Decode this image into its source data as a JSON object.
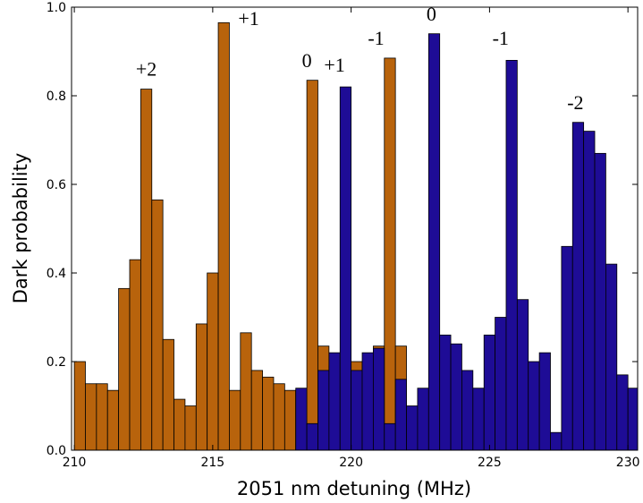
{
  "chart_data": {
    "type": "histogram",
    "xlabel": "2051 nm detuning (MHz)",
    "ylabel": "Dark probability",
    "xlim": [
      209.9,
      230.35
    ],
    "ylim": [
      0,
      1
    ],
    "xticks": [
      210,
      215,
      220,
      225,
      230
    ],
    "yticks": [
      {
        "value": 0,
        "label": "0.0"
      },
      {
        "value": 0.2,
        "label": "0.2"
      },
      {
        "value": 0.4,
        "label": "0.4"
      },
      {
        "value": 0.6,
        "label": "0.6"
      },
      {
        "value": 0.8,
        "label": "0.8"
      },
      {
        "value": 1,
        "label": "1.0"
      }
    ],
    "series": [
      {
        "color": "#b8630c",
        "bins": [
          210,
          210.4,
          210.8,
          211.2,
          211.6,
          212,
          212.4,
          212.8,
          213.2,
          213.6,
          214,
          214.4,
          214.8,
          215.2,
          215.6,
          216,
          216.4,
          216.8,
          217.2,
          217.6,
          218,
          218.4,
          218.8,
          219.2,
          219.6,
          220,
          220.4,
          220.8,
          221.2,
          221.6,
          222
        ],
        "values": [
          0.2,
          0.15,
          0.15,
          0.135,
          0.365,
          0.43,
          0.815,
          0.565,
          0.25,
          0.115,
          0.1,
          0.285,
          0.4,
          0.965,
          0.135,
          0.265,
          0.18,
          0.165,
          0.15,
          0.135,
          0.135,
          0.835,
          0.235,
          0.19,
          0.2,
          0.2,
          0.2,
          0.235,
          0.885,
          0.235
        ]
      },
      {
        "color": "#1e0c96",
        "bins": [
          218,
          218.4,
          218.8,
          219.2,
          219.6,
          220,
          220.4,
          220.8,
          221.2,
          221.6,
          222,
          222.4,
          222.8,
          223.2,
          223.6,
          224,
          224.4,
          224.8,
          225.2,
          225.6,
          226,
          226.4,
          226.8,
          227.2,
          227.6,
          228,
          228.4,
          228.8,
          229.2,
          229.6,
          230,
          230.4
        ],
        "values": [
          0.14,
          0.06,
          0.18,
          0.22,
          0.82,
          0.18,
          0.22,
          0.23,
          0.06,
          0.16,
          0.1,
          0.14,
          0.94,
          0.26,
          0.24,
          0.18,
          0.14,
          0.26,
          0.3,
          0.88,
          0.34,
          0.2,
          0.22,
          0.04,
          0.46,
          0.74,
          0.72,
          0.67,
          0.42,
          0.17,
          0.14
        ]
      }
    ],
    "annotations": [
      {
        "text": "+2",
        "x": 212.6,
        "y": 0.845
      },
      {
        "text": "+1",
        "x": 216.3,
        "y": 0.96
      },
      {
        "text": "0",
        "x": 218.4,
        "y": 0.865
      },
      {
        "text": "+1",
        "x": 219.4,
        "y": 0.855
      },
      {
        "text": "-1",
        "x": 220.9,
        "y": 0.915
      },
      {
        "text": "0",
        "x": 222.9,
        "y": 0.97
      },
      {
        "text": "-1",
        "x": 225.4,
        "y": 0.915
      },
      {
        "text": "-2",
        "x": 228.1,
        "y": 0.77
      }
    ]
  }
}
